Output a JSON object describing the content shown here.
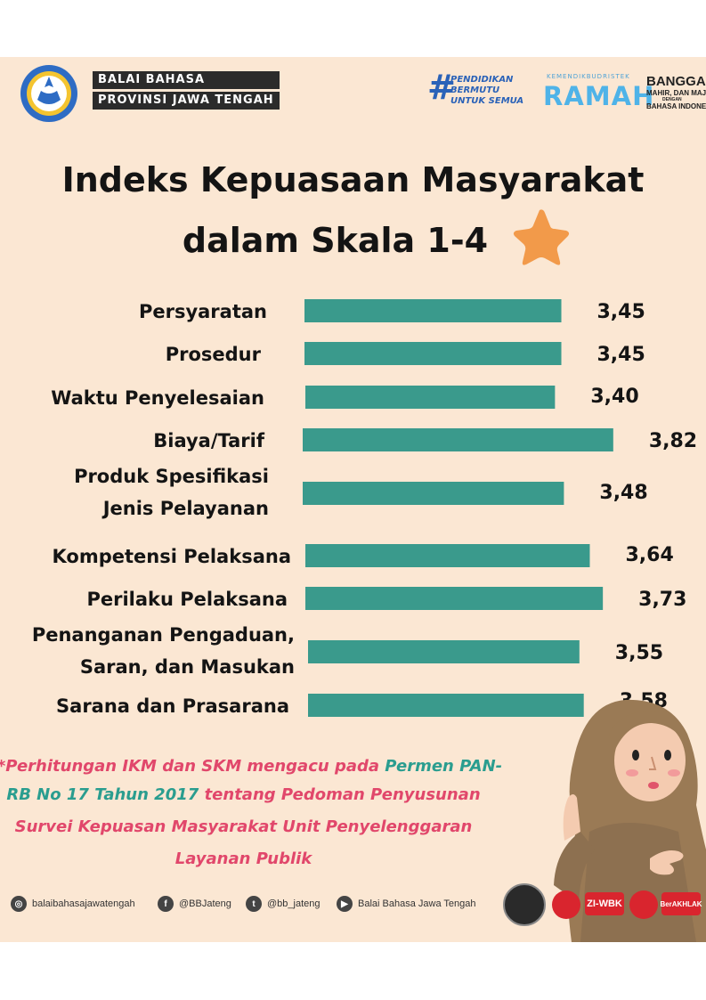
{
  "header": {
    "balai_line1": "BALAI BAHASA",
    "balai_line2": "PROVINSI JAWA TENGAH",
    "pendidikan_hash": "#",
    "pendidikan_line1": "PENDIDIKAN",
    "pendidikan_line2": "BERMUTU",
    "pendidikan_line3": "UNTUK SEMUA",
    "ramah_small": "KEMENDIKBUDRISTEK",
    "ramah_big": "RAMAH",
    "bangga_line1": "BANGGA,",
    "bangga_line2": "MAHIR, DAN MAJU",
    "bangga_line3": "DENGAN",
    "bangga_line4": "BAHASA INDONESIA"
  },
  "title": {
    "line1": "Indeks Kepuasaan Masyarakat",
    "line2": "dalam Skala 1-4"
  },
  "chart_data": {
    "type": "bar",
    "orientation": "horizontal",
    "title": "Indeks Kepuasaan Masyarakat dalam Skala 1-4",
    "categories": [
      [
        "Persyaratan"
      ],
      [
        "Prosedur"
      ],
      [
        "Waktu Penyelesaian"
      ],
      [
        "Biaya/Tarif"
      ],
      [
        "Produk Spesifikasi",
        "Jenis Pelayanan"
      ],
      [
        "Kompetensi Pelaksana"
      ],
      [
        "Perilaku Pelaksana"
      ],
      [
        "Penanganan Pengaduan,",
        "Saran, dan Masukan"
      ],
      [
        "Sarana dan Prasarana"
      ]
    ],
    "values": [
      3.45,
      3.45,
      3.4,
      3.82,
      3.48,
      3.64,
      3.73,
      3.55,
      3.58
    ],
    "value_labels": [
      "3,45",
      "3,45",
      "3,40",
      "3,82",
      "3,48",
      "3,64",
      "3,73",
      "3,55",
      "3,58"
    ],
    "bar_color": "#3a9a8c",
    "xlim": [
      1.68,
      4
    ],
    "grid": false,
    "legend": "none"
  },
  "note": {
    "line1_a": "*Perhitungan IKM dan SKM mengacu pada ",
    "line1_b": "Permen PAN-",
    "line2_a": "RB No 17 Tahun 2017",
    "line2_b": " tentang Pedoman Penyusunan",
    "line3": "Survei Kepuasan Masyarakat Unit Penyelenggaran",
    "line4": "Layanan Publik"
  },
  "footer": {
    "instagram": "balaibahasajawatengah",
    "facebook": "@BBJateng",
    "twitter": "@bb_jateng",
    "youtube": "Balai Bahasa Jawa Tengah",
    "badge_zi": "ZI-WBK",
    "badge_berakhlak": "BerAKHLAK"
  },
  "colors": {
    "background": "#fbe7d3",
    "bar": "#3a9a8c",
    "note_pink": "#e1476b",
    "note_teal": "#2a9d8f",
    "star": "#f29a4a"
  }
}
